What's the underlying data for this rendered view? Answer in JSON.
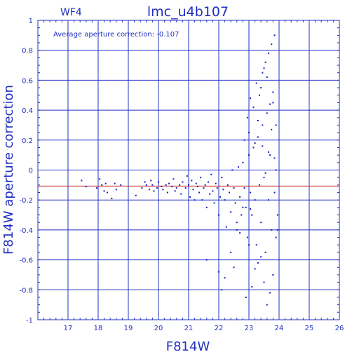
{
  "chart_data": {
    "type": "scatter",
    "chip_label": "WF4",
    "title": "lmc_u4b107",
    "annotation": "Average aperture correction: -0.107",
    "xlabel": "F814W",
    "ylabel": "F814W aperture correction",
    "xlim": [
      16,
      26
    ],
    "ylim": [
      -1,
      1
    ],
    "x_ticks": [
      17,
      18,
      19,
      20,
      21,
      22,
      23,
      24,
      25,
      26
    ],
    "y_ticks": [
      "-1",
      "-0.8",
      "-0.6",
      "-0.4",
      "-0.2",
      "0",
      "0.2",
      "0.4",
      "0.6",
      "0.8",
      "1"
    ],
    "grid": true,
    "reference_line": {
      "y": -0.107,
      "color": "#c02020"
    },
    "colors": {
      "axes": "#2030c0",
      "points": "#1020c0"
    },
    "series": [
      {
        "x": [
          17.45,
          17.6,
          17.95,
          18.05,
          18.12,
          18.2,
          18.25,
          18.3,
          18.45,
          18.55,
          18.6,
          18.75,
          19.25,
          19.45,
          19.55,
          19.6,
          19.7,
          19.75,
          19.8,
          19.85,
          19.95,
          20.0,
          20.1,
          20.15,
          20.25,
          20.3,
          20.35,
          20.45,
          20.5,
          20.55,
          20.6,
          20.7,
          20.75,
          20.8,
          20.9,
          20.95,
          21.0,
          21.05,
          21.1,
          21.15,
          21.2,
          21.25,
          21.3,
          21.35,
          21.4,
          21.45,
          21.5,
          21.55,
          21.6,
          21.65,
          21.7,
          21.75,
          21.8,
          21.85,
          21.9,
          21.95,
          22.0,
          22.05,
          22.1,
          22.15,
          22.2,
          22.25,
          22.3,
          22.35,
          22.4,
          22.45,
          22.5,
          22.55,
          22.6,
          22.65,
          22.7,
          22.75,
          22.8,
          22.85,
          22.9,
          22.95,
          23.0,
          23.05,
          23.1,
          23.15,
          23.2,
          23.25,
          23.3,
          23.35,
          23.4,
          23.45,
          23.5,
          23.55,
          23.6,
          23.65,
          23.7,
          23.75,
          23.8,
          23.85,
          23.9,
          23.95,
          21.6,
          22.0,
          22.1,
          22.2,
          22.4,
          22.5,
          22.6,
          22.7,
          22.8,
          22.9,
          23.0,
          23.1,
          23.2,
          23.3,
          23.4,
          23.5,
          23.6,
          23.7,
          23.8,
          23.9,
          23.95,
          23.25,
          23.45,
          23.55,
          23.65,
          23.75,
          23.85,
          23.35,
          23.15,
          22.95,
          23.05,
          23.4,
          23.6,
          23.8,
          23.5,
          23.7,
          23.9,
          22.85,
          23.0,
          23.2,
          23.3,
          23.65,
          23.75,
          23.85,
          23.45,
          23.55,
          23.05
        ],
        "y": [
          -0.07,
          -0.11,
          -0.12,
          -0.06,
          -0.1,
          -0.14,
          -0.09,
          -0.15,
          -0.19,
          -0.09,
          -0.13,
          -0.1,
          -0.17,
          -0.12,
          -0.08,
          -0.1,
          -0.13,
          -0.07,
          -0.1,
          -0.14,
          -0.12,
          -0.08,
          -0.11,
          -0.13,
          -0.1,
          -0.15,
          -0.09,
          -0.11,
          -0.06,
          -0.14,
          -0.12,
          -0.1,
          -0.16,
          -0.08,
          -0.12,
          -0.04,
          -0.1,
          -0.18,
          -0.07,
          -0.13,
          -0.2,
          -0.09,
          -0.11,
          -0.15,
          -0.05,
          -0.2,
          -0.12,
          -0.1,
          -0.25,
          -0.08,
          -0.16,
          -0.03,
          -0.14,
          -0.22,
          -0.09,
          -0.12,
          -0.3,
          -0.18,
          -0.05,
          -0.13,
          -0.2,
          -0.38,
          -0.1,
          -0.15,
          -0.28,
          0.0,
          -0.12,
          -0.22,
          -0.4,
          0.02,
          -0.18,
          -0.3,
          0.05,
          -0.12,
          -0.25,
          -0.45,
          0.1,
          -0.15,
          -0.3,
          0.15,
          -0.2,
          -0.5,
          0.22,
          -0.1,
          -0.35,
          0.3,
          -0.05,
          -0.55,
          0.38,
          -0.2,
          0.1,
          -0.4,
          0.45,
          -0.15,
          0.0,
          -0.3,
          -0.6,
          -0.68,
          -0.8,
          -0.72,
          -0.55,
          -0.65,
          -0.35,
          -0.42,
          -0.25,
          -0.85,
          -0.5,
          -0.78,
          -0.66,
          -0.62,
          -0.58,
          -0.75,
          -0.9,
          -0.82,
          -0.7,
          -0.45,
          -0.4,
          0.58,
          0.65,
          0.72,
          0.78,
          0.84,
          0.9,
          0.5,
          0.42,
          0.35,
          0.48,
          0.55,
          0.62,
          0.52,
          0.68,
          0.44,
          0.3,
          0.2,
          0.25,
          0.18,
          0.33,
          0.12,
          0.27,
          0.08,
          0.16,
          -0.02,
          -0.26
        ]
      }
    ]
  }
}
